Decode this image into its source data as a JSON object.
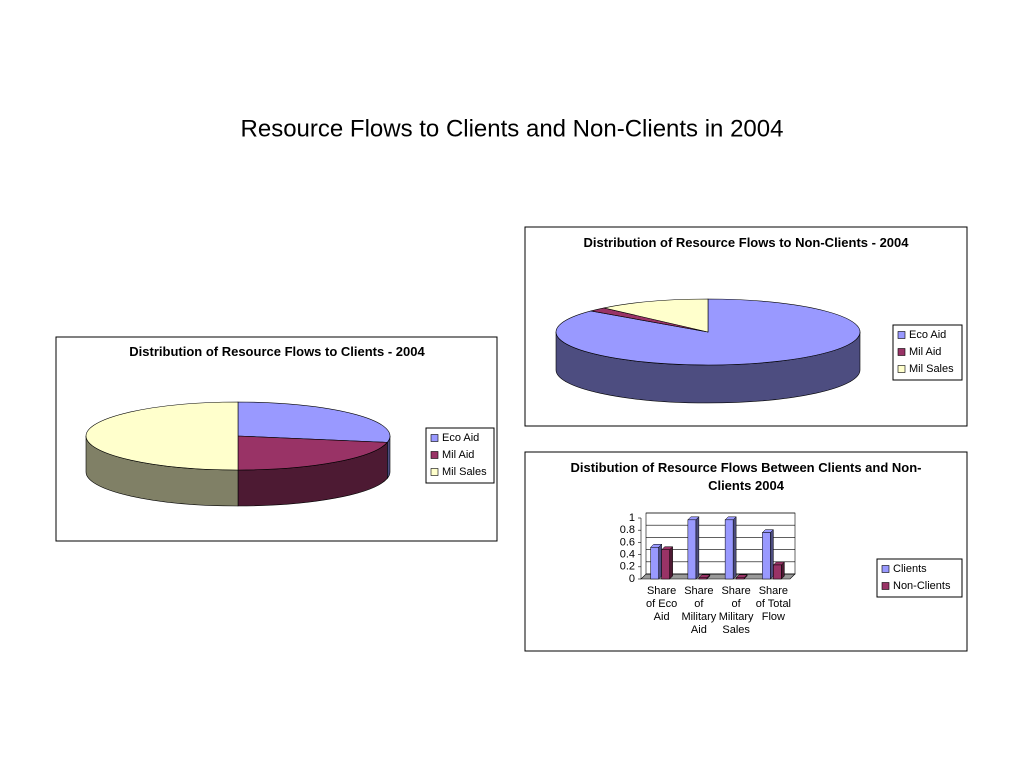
{
  "page_title": "Resource Flows to Clients and Non-Clients in 2004",
  "chart_data": [
    {
      "type": "pie",
      "title": "Distribution of Resource Flows to Clients - 2004",
      "categories": [
        "Eco Aid",
        "Mil Aid",
        "Mil Sales"
      ],
      "values": [
        28,
        22,
        50
      ],
      "colors": [
        "#9999ff",
        "#993366",
        "#ffffcc"
      ],
      "legend": "right"
    },
    {
      "type": "pie",
      "title": "Distribution of Resource Flows to Non-Clients - 2004",
      "categories": [
        "Eco Aid",
        "Mil Aid",
        "Mil Sales"
      ],
      "values": [
        86,
        2,
        12
      ],
      "colors": [
        "#9999ff",
        "#993366",
        "#ffffcc"
      ],
      "legend": "right"
    },
    {
      "type": "bar",
      "title": "Distibution of Resource Flows Between Clients and Non-Clients 2004",
      "categories": [
        "Share of Eco Aid",
        "Share of Military Aid",
        "Share of Military Sales",
        "Share of Total Flow"
      ],
      "series": [
        {
          "name": "Clients",
          "color": "#9999ff",
          "values": [
            0.52,
            0.97,
            0.97,
            0.76
          ]
        },
        {
          "name": "Non-Clients",
          "color": "#993366",
          "values": [
            0.48,
            0.02,
            0.02,
            0.23
          ]
        }
      ],
      "ylim": [
        0,
        1
      ],
      "yticks": [
        0,
        0.2,
        0.4,
        0.6,
        0.8,
        1
      ],
      "grid": true,
      "legend": "right"
    }
  ]
}
